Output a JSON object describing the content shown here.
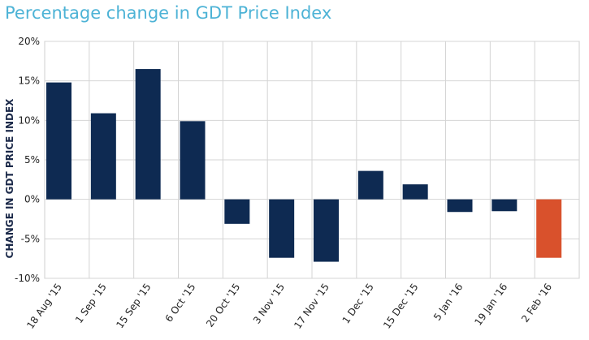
{
  "chart_data": {
    "type": "bar",
    "title": "Percentage change in GDT Price Index",
    "xlabel": "",
    "ylabel": "CHANGE IN GDT PRICE INDEX",
    "categories": [
      "18 Aug '15",
      "1 Sep '15",
      "15 Sep '15",
      "6 Oct '15",
      "20 Oct '15",
      "3 Nov '15",
      "17 Nov '15",
      "1 Dec '15",
      "15 Dec '15",
      "5 Jan '16",
      "19 Jan '16",
      "2 Feb '16"
    ],
    "values": [
      14.8,
      10.9,
      16.5,
      9.9,
      -3.1,
      -7.4,
      -7.9,
      3.6,
      1.9,
      -1.6,
      -1.5,
      -7.4
    ],
    "yticks": [
      "20%",
      "15%",
      "10%",
      "5%",
      "0%",
      "-5%",
      "-10%"
    ],
    "ylim": [
      -10,
      20
    ],
    "grid": true,
    "colors": {
      "default": "#0e2a52",
      "highlight": "#d9512c",
      "title": "#4db3d6"
    },
    "highlight_index": 11
  }
}
